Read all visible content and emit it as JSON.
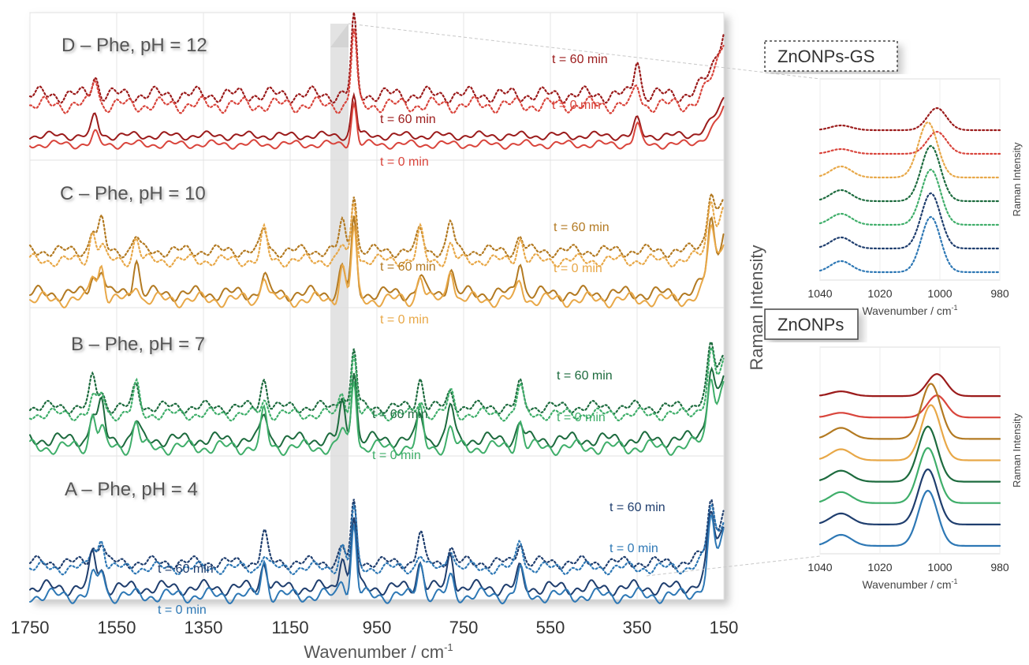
{
  "figure": {
    "main_xlabel": "Wavenumber / cm",
    "main_xlabel_sup": "-1",
    "main_xticks": [
      "1750",
      "1550",
      "1350",
      "1150",
      "950",
      "750",
      "550",
      "350",
      "150"
    ],
    "main_ylabel": "Raman Intensity"
  },
  "chart_data": [
    {
      "type": "line",
      "x_axis": {
        "label": "Wavenumber / cm-1",
        "range": [
          1750,
          150
        ],
        "reversed": true,
        "ticks": [
          1750,
          1550,
          1350,
          1150,
          950,
          750,
          550,
          350,
          150
        ]
      },
      "y_axis": {
        "label": "Raman Intensity"
      },
      "grid": true,
      "highlight_band_cm1": [
        1070,
        1000
      ],
      "panels": [
        {
          "title": "D – Phe, pH = 12",
          "annotations": [
            "t = 60 min",
            "t = 0 min",
            "t = 60 min",
            "t = 0 min"
          ],
          "series": [
            {
              "substrate": "ZnONPs-GS",
              "time": "t = 60 min",
              "style": "dotted",
              "color": "#9b1b1b"
            },
            {
              "substrate": "ZnONPs-GS",
              "time": "t = 0 min",
              "style": "dotted",
              "color": "#d9453c"
            },
            {
              "substrate": "ZnONPs",
              "time": "t = 60 min",
              "style": "solid",
              "color": "#9b1b1b"
            },
            {
              "substrate": "ZnONPs",
              "time": "t = 0 min",
              "style": "solid",
              "color": "#d9453c"
            }
          ],
          "peaks_cm1": [
            1600,
            1003,
            350
          ]
        },
        {
          "title": "C – Phe, pH = 10",
          "annotations": [
            "t = 60 min",
            "t = 0 min",
            "t = 60 min",
            "t = 0 min"
          ],
          "series": [
            {
              "substrate": "ZnONPs-GS",
              "time": "t = 60 min",
              "style": "dotted",
              "color": "#b37a22"
            },
            {
              "substrate": "ZnONPs-GS",
              "time": "t = 0 min",
              "style": "dotted",
              "color": "#e8a848"
            },
            {
              "substrate": "ZnONPs",
              "time": "t = 60 min",
              "style": "solid",
              "color": "#b37a22"
            },
            {
              "substrate": "ZnONPs",
              "time": "t = 0 min",
              "style": "solid",
              "color": "#e8a848"
            }
          ],
          "peaks_cm1": [
            1605,
            1585,
            1505,
            1210,
            1030,
            1003,
            850,
            780,
            620,
            180
          ]
        },
        {
          "title": "B – Phe, pH = 7",
          "annotations": [
            "t = 60 min",
            "t = 0 min",
            "t = 60 min",
            "t = 0 min"
          ],
          "series": [
            {
              "substrate": "ZnONPs-GS",
              "time": "t = 60 min",
              "style": "dotted",
              "color": "#1d6b3e"
            },
            {
              "substrate": "ZnONPs-GS",
              "time": "t = 0 min",
              "style": "dotted",
              "color": "#3fae6a"
            },
            {
              "substrate": "ZnONPs",
              "time": "t = 60 min",
              "style": "solid",
              "color": "#1d6b3e"
            },
            {
              "substrate": "ZnONPs",
              "time": "t = 0 min",
              "style": "solid",
              "color": "#3fae6a"
            }
          ],
          "peaks_cm1": [
            1605,
            1585,
            1505,
            1210,
            1030,
            1003,
            850,
            780,
            620,
            180
          ]
        },
        {
          "title": "A – Phe, pH = 4",
          "annotations": [
            "t = 60 min",
            "t = 0 min",
            "t = 60 min",
            "t = 0 min"
          ],
          "series": [
            {
              "substrate": "ZnONPs-GS",
              "time": "t = 60 min",
              "style": "dotted",
              "color": "#1f3e6e"
            },
            {
              "substrate": "ZnONPs-GS",
              "time": "t = 0 min",
              "style": "dotted",
              "color": "#2e78b5"
            },
            {
              "substrate": "ZnONPs",
              "time": "t = 60 min",
              "style": "solid",
              "color": "#1f3e6e"
            },
            {
              "substrate": "ZnONPs",
              "time": "t = 0 min",
              "style": "solid",
              "color": "#2e78b5"
            }
          ],
          "peaks_cm1": [
            1605,
            1585,
            1210,
            1030,
            1003,
            850,
            780,
            620,
            180
          ]
        }
      ]
    },
    {
      "type": "line",
      "title": "ZnONPs-GS",
      "x_axis": {
        "label": "Wavenumber / cm-1",
        "range": [
          1040,
          980
        ],
        "reversed": true,
        "ticks": [
          1040,
          1020,
          1000,
          980
        ]
      },
      "y_axis": {
        "label": "Raman Intensity"
      },
      "style": "dotted",
      "traces": [
        {
          "color": "#9b1b1b",
          "peak_cm1": 1001
        },
        {
          "color": "#d9453c",
          "peak_cm1": 1001
        },
        {
          "color": "#e8a848",
          "peak_cm1": 1004
        },
        {
          "color": "#1d6b3e",
          "peak_cm1": 1003
        },
        {
          "color": "#3fae6a",
          "peak_cm1": 1003
        },
        {
          "color": "#1f3e6e",
          "peak_cm1": 1003
        },
        {
          "color": "#2e78b5",
          "peak_cm1": 1003
        }
      ]
    },
    {
      "type": "line",
      "title": "ZnONPs",
      "x_axis": {
        "label": "Wavenumber / cm-1",
        "range": [
          1040,
          980
        ],
        "reversed": true,
        "ticks": [
          1040,
          1020,
          1000,
          980
        ]
      },
      "y_axis": {
        "label": "Raman Intensity"
      },
      "style": "solid",
      "traces": [
        {
          "color": "#9b1b1b",
          "peak_cm1": 1001
        },
        {
          "color": "#d9453c",
          "peak_cm1": 1001
        },
        {
          "color": "#b37a22",
          "peak_cm1": 1003
        },
        {
          "color": "#e8a848",
          "peak_cm1": 1003
        },
        {
          "color": "#1d6b3e",
          "peak_cm1": 1004
        },
        {
          "color": "#3fae6a",
          "peak_cm1": 1004
        },
        {
          "color": "#1f3e6e",
          "peak_cm1": 1004
        },
        {
          "color": "#2e78b5",
          "peak_cm1": 1004
        }
      ]
    }
  ]
}
